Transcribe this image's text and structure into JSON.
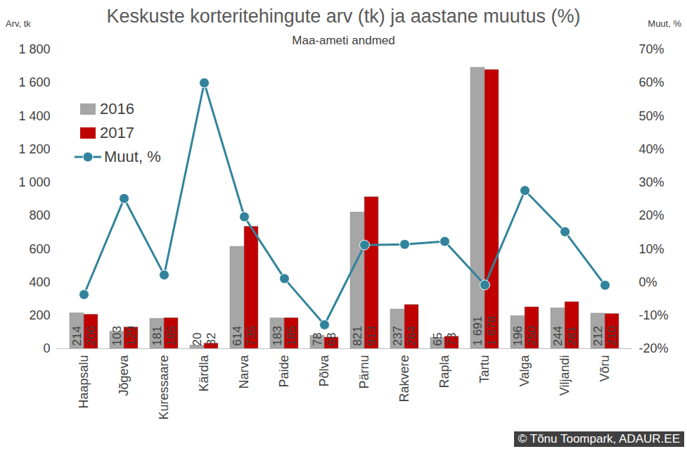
{
  "chart_data": {
    "type": "bar",
    "title": "Keskuste korteritehingute arv (tk) ja aastane muutus (%)",
    "subtitle": "Maa-ameti andmed",
    "source": "© Tõnu Toompark, ADAUR.EE",
    "ylabel": "Arv, tk",
    "y2label": "Muut, %",
    "categories": [
      "Haapsalu",
      "Jõgeva",
      "Kuressaare",
      "Kärdla",
      "Narva",
      "Paide",
      "Põlva",
      "Pärnu",
      "Rakvere",
      "Rapla",
      "Tartu",
      "Valga",
      "Viljandi",
      "Võru"
    ],
    "series": [
      {
        "name": "2016",
        "type": "bar",
        "color": "#a6a6a6",
        "data_labels": true,
        "values": [
          214,
          103,
          181,
          20,
          614,
          183,
          78,
          821,
          237,
          65,
          1691,
          196,
          244,
          212
        ],
        "value_labels": [
          "214",
          "103",
          "181",
          "20",
          "614",
          "183",
          "78",
          "821",
          "237",
          "65",
          "1 691",
          "196",
          "244",
          "212"
        ]
      },
      {
        "name": "2017",
        "type": "bar",
        "color": "#c00000",
        "data_labels": true,
        "values": [
          206,
          129,
          185,
          32,
          735,
          185,
          68,
          913,
          264,
          73,
          1678,
          250,
          281,
          210
        ],
        "value_labels": [
          "206",
          "129",
          "185",
          "32",
          "735",
          "185",
          "68",
          "913",
          "264",
          "73",
          "1 678",
          "250",
          "281",
          "210"
        ]
      },
      {
        "name": "Muut, %",
        "type": "line",
        "axis": "y2",
        "color": "#31849b",
        "marker": "circle",
        "values": [
          -3.7,
          25.2,
          2.2,
          60,
          19.7,
          1.1,
          -12.8,
          11.2,
          11.4,
          12.3,
          -0.8,
          27.6,
          15.2,
          -0.9
        ]
      }
    ],
    "ylim": [
      0,
      1800
    ],
    "yticks": [
      0,
      200,
      400,
      600,
      800,
      {
        "value": 1000,
        "label": "1 000"
      },
      {
        "value": 1200,
        "label": "1 200"
      },
      {
        "value": 1400,
        "label": "1 400"
      },
      {
        "value": 1600,
        "label": "1 600"
      },
      {
        "value": 1800,
        "label": "1 800"
      }
    ],
    "y2lim": [
      -20,
      70
    ],
    "y2ticks": [
      {
        "value": -20,
        "label": "-20%"
      },
      {
        "value": -10,
        "label": "-10%"
      },
      {
        "value": 0,
        "label": "0%"
      },
      {
        "value": 10,
        "label": "10%"
      },
      {
        "value": 20,
        "label": "20%"
      },
      {
        "value": 30,
        "label": "30%"
      },
      {
        "value": 40,
        "label": "40%"
      },
      {
        "value": 50,
        "label": "50%"
      },
      {
        "value": 60,
        "label": "60%"
      },
      {
        "value": 70,
        "label": "70%"
      }
    ],
    "grid": false,
    "legend": "upper left"
  }
}
